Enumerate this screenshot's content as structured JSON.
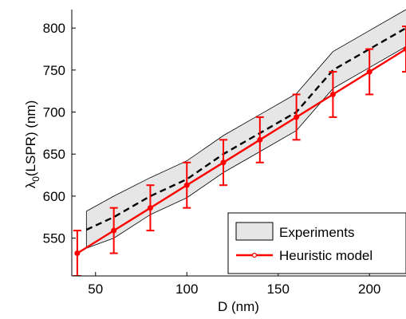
{
  "chart_data": {
    "type": "line",
    "title": "",
    "xlabel": "D (nm)",
    "ylabel": "λ0(LSPR) (nm)",
    "ylabel_main": "λ",
    "ylabel_sub": "0",
    "ylabel_rest": "(LSPR) (nm)",
    "xlim": [
      37,
      220
    ],
    "ylim": [
      505,
      822
    ],
    "xticks": [
      50,
      100,
      150,
      200
    ],
    "yticks": [
      550,
      600,
      650,
      700,
      750,
      800
    ],
    "grid": false,
    "legend_position": "bottom-right",
    "experiments": {
      "name": "Experiments",
      "x": [
        45,
        60,
        80,
        100,
        120,
        140,
        160,
        180,
        200,
        220
      ],
      "mean": [
        560,
        575,
        600,
        620,
        650,
        675,
        700,
        750,
        775,
        800
      ],
      "upper": [
        582,
        600,
        622,
        642,
        672,
        697,
        722,
        772,
        797,
        822
      ],
      "lower": [
        538,
        550,
        578,
        598,
        628,
        653,
        678,
        728,
        753,
        778
      ],
      "band_color": "#e6e6e6",
      "line_color": "#000000"
    },
    "model": {
      "name": "Heuristic model",
      "x": [
        40,
        60,
        80,
        100,
        120,
        140,
        160,
        180,
        200,
        220
      ],
      "values": [
        532,
        559,
        586,
        613,
        640,
        667,
        694,
        721,
        748,
        775
      ],
      "error": [
        27,
        27,
        27,
        27,
        27,
        27,
        27,
        27,
        27,
        27
      ],
      "color": "#ff0000"
    }
  }
}
